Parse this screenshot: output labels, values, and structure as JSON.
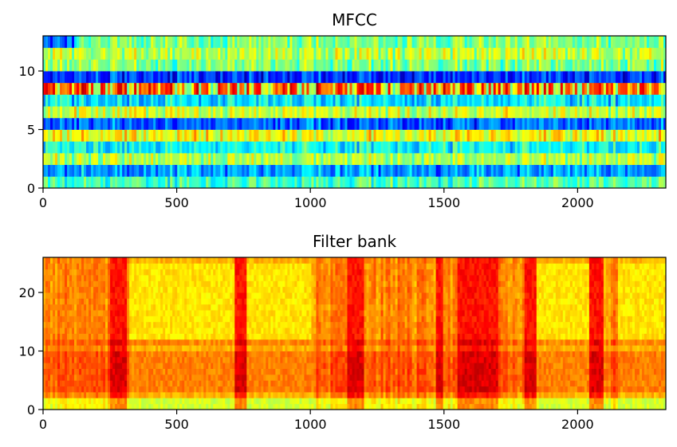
{
  "chart_data": [
    {
      "type": "heatmap",
      "title": "MFCC",
      "xlabel": "",
      "ylabel": "",
      "xlim": [
        0,
        2330
      ],
      "ylim": [
        0,
        13
      ],
      "xticks": [
        0,
        500,
        1000,
        1500,
        2000
      ],
      "yticks": [
        0,
        5,
        10
      ],
      "colormap": "jet",
      "bands": [
        {
          "y": 0.5,
          "level": 0.45
        },
        {
          "y": 1.5,
          "level": 0.28
        },
        {
          "y": 2.5,
          "level": 0.55
        },
        {
          "y": 3.5,
          "level": 0.38
        },
        {
          "y": 4.5,
          "level": 0.62
        },
        {
          "y": 5.5,
          "level": 0.22
        },
        {
          "y": 6.5,
          "level": 0.58
        },
        {
          "y": 7.5,
          "level": 0.36
        },
        {
          "y": 8.5,
          "level": 0.82
        },
        {
          "y": 9.5,
          "level": 0.18
        },
        {
          "y": 10.5,
          "level": 0.5
        },
        {
          "y": 11.5,
          "level": 0.56
        },
        {
          "y": 12.5,
          "level": 0.5
        }
      ]
    },
    {
      "type": "heatmap",
      "title": "Filter bank",
      "xlabel": "",
      "ylabel": "",
      "xlim": [
        0,
        2330
      ],
      "ylim": [
        0,
        26
      ],
      "xticks": [
        0,
        500,
        1000,
        1500,
        2000
      ],
      "yticks": [
        0,
        10,
        20
      ],
      "colormap": "hot-jet",
      "bright_x_ranges": [
        [
          250,
          310
        ],
        [
          720,
          760
        ],
        [
          1140,
          1200
        ],
        [
          1470,
          1500
        ],
        [
          1550,
          1700
        ],
        [
          1800,
          1850
        ],
        [
          2040,
          2100
        ]
      ],
      "dark_x_ranges": [
        [
          320,
          720
        ],
        [
          760,
          1000
        ],
        [
          1850,
          2040
        ],
        [
          2150,
          2330
        ]
      ]
    }
  ]
}
